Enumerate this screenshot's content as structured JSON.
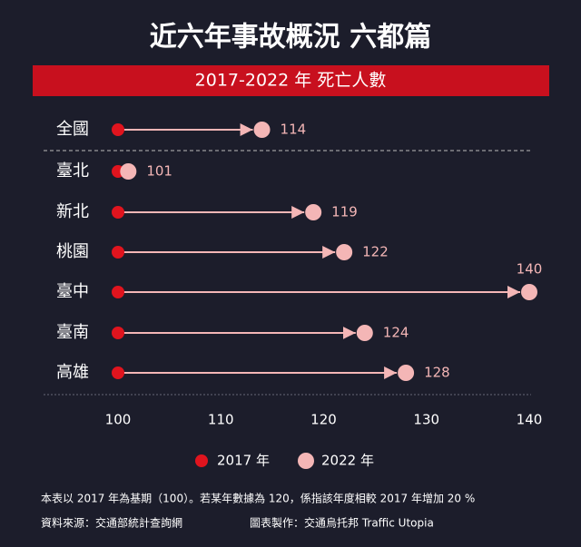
{
  "chart_data": {
    "type": "dumbbell",
    "title": "近六年事故概況 六都篇",
    "subtitle": "2017-2022 年 死亡人數",
    "categories": [
      "全國",
      "臺北",
      "新北",
      "桃園",
      "臺中",
      "臺南",
      "高雄"
    ],
    "series": [
      {
        "name": "2017 年",
        "color": "#e0141e",
        "values": [
          100,
          100,
          100,
          100,
          100,
          100,
          100
        ]
      },
      {
        "name": "2022 年",
        "color": "#f4b6b6",
        "values": [
          114,
          101,
          119,
          122,
          140,
          124,
          128
        ]
      }
    ],
    "xlim": [
      100,
      140
    ],
    "xticks": [
      100,
      110,
      120,
      130,
      140
    ],
    "grid": false,
    "legend": "bottom",
    "notes": [
      "本表以 2017 年為基期（100）。若某年數據為 120，係指該年度相較 2017 年增加 20 %",
      "資料來源：交通部統計查詢網",
      "圖表製作：交通烏托邦 Traffic Utopia"
    ]
  }
}
